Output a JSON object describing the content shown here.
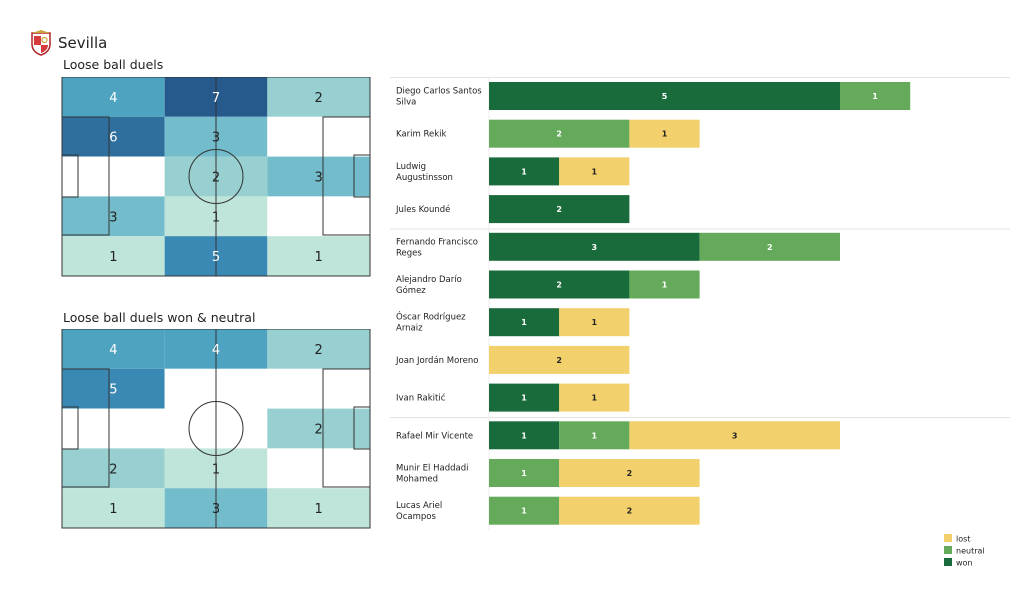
{
  "header": {
    "team": "Sevilla"
  },
  "chart_data": [
    {
      "type": "heatmap",
      "title": "Loose ball duels",
      "grid": [
        [
          4,
          7,
          2
        ],
        [
          6,
          3,
          null
        ],
        [
          null,
          2,
          3
        ],
        [
          3,
          1,
          null
        ],
        [
          1,
          5,
          1
        ]
      ]
    },
    {
      "type": "heatmap",
      "title": "Loose ball duels won & neutral",
      "grid": [
        [
          4,
          4,
          2
        ],
        [
          5,
          null,
          null
        ],
        [
          null,
          null,
          2
        ],
        [
          2,
          1,
          null
        ],
        [
          1,
          3,
          1
        ]
      ]
    },
    {
      "type": "bar",
      "stacked": true,
      "orientation": "horizontal",
      "categories": [
        "Diego Carlos Santos Silva",
        "Karim Rekik",
        "Ludwig Augustinsson",
        "Jules Koundé",
        "Fernando Francisco Reges",
        "Alejandro Darío Gómez",
        "Óscar Rodríguez Arnaiz",
        "Joan Jordán Moreno",
        "Ivan Rakitić",
        "Rafael Mir Vicente",
        "Munir El Haddadi Mohamed",
        "Lucas Ariel Ocampos"
      ],
      "series": [
        {
          "name": "won",
          "values": [
            5,
            0,
            1,
            2,
            3,
            2,
            1,
            0,
            1,
            1,
            0,
            0
          ]
        },
        {
          "name": "neutral",
          "values": [
            1,
            2,
            0,
            0,
            2,
            1,
            0,
            0,
            0,
            1,
            1,
            1
          ]
        },
        {
          "name": "lost",
          "values": [
            0,
            1,
            1,
            0,
            0,
            0,
            1,
            2,
            1,
            3,
            2,
            2
          ]
        }
      ],
      "legend": {
        "position": "bottom-right",
        "order": [
          "lost",
          "neutral",
          "won"
        ]
      },
      "colors": {
        "won": "#1a6b3b",
        "neutral": "#64aa5a",
        "lost": "#f2d06b"
      }
    }
  ]
}
